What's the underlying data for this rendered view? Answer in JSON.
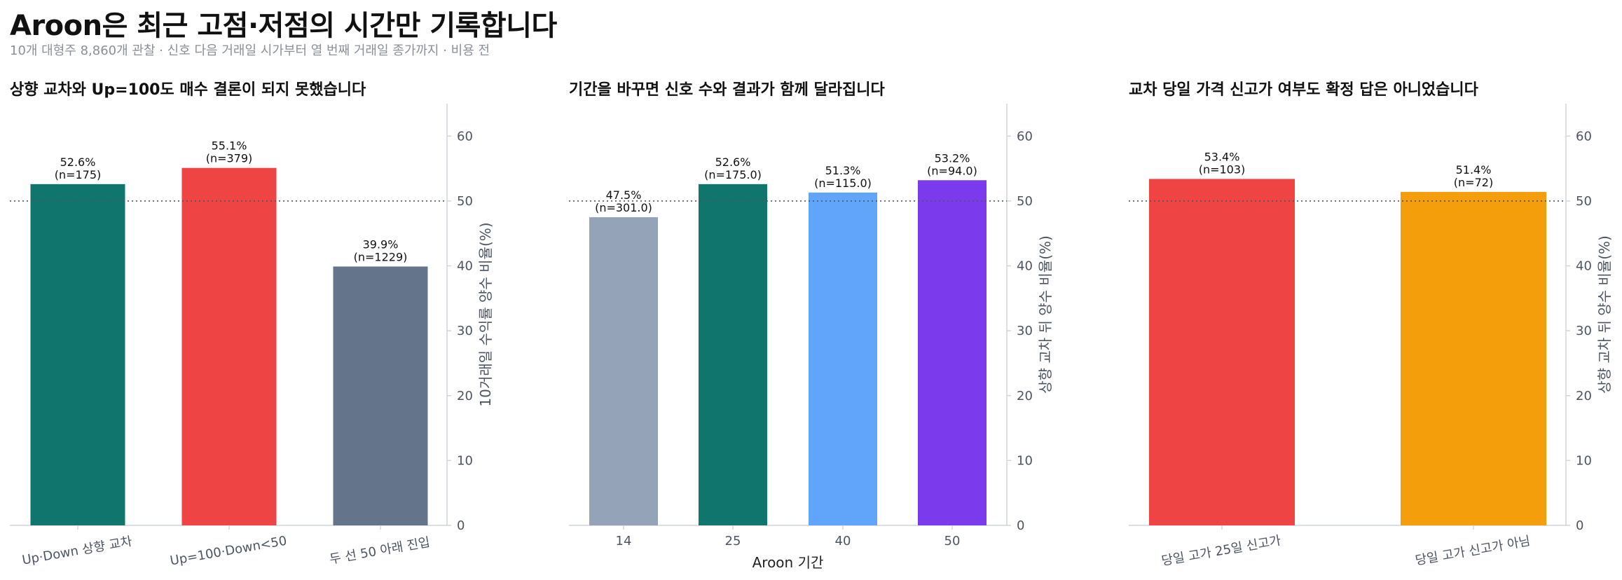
{
  "title": "Aroon은 최근 고점·저점의 시간만 기록합니다",
  "subtitle": "10개 대형주 8,860개 관찰 · 신호 다음 거래일 시가부터 열 번째 거래일 종가까지 · 비용 전",
  "colors": {
    "green": "#10766d",
    "red": "#ef4444",
    "slate": "#64748b",
    "light_slate": "#94a3b8",
    "blue": "#60a5fa",
    "purple": "#7c3aed",
    "orange": "#f59e0b",
    "axis": "#d1d5db",
    "reference_line": "#4b5563"
  },
  "chart_data": [
    {
      "type": "bar",
      "title": "상향 교차와 Up=100도 매수 결론이 되지 못했습니다",
      "categories": [
        "Up·Down 상향 교차",
        "Up=100·Down<50",
        "두 선 50 아래 진입"
      ],
      "values": [
        52.6,
        55.1,
        39.9
      ],
      "labels": [
        "52.6%\n(n=175)",
        "55.1%\n(n=379)",
        "39.9%\n(n=1229)"
      ],
      "colors": [
        "#10766d",
        "#ef4444",
        "#64748b"
      ],
      "xlabel": "",
      "ylabel": "10거래일 수익률 양수 비율(%)",
      "ylim": [
        0,
        65
      ],
      "yticks": [
        0,
        10,
        20,
        30,
        40,
        50,
        60
      ],
      "reference_line": 50,
      "rotated_categories": true
    },
    {
      "type": "bar",
      "title": "기간을 바꾸면 신호 수와 결과가 함께 달라집니다",
      "categories": [
        "14",
        "25",
        "40",
        "50"
      ],
      "values": [
        47.5,
        52.6,
        51.3,
        53.2
      ],
      "labels": [
        "47.5%\n(n=301.0)",
        "52.6%\n(n=175.0)",
        "51.3%\n(n=115.0)",
        "53.2%\n(n=94.0)"
      ],
      "colors": [
        "#94a3b8",
        "#10766d",
        "#60a5fa",
        "#7c3aed"
      ],
      "xlabel": "Aroon 기간",
      "ylabel": "상향 교차 뒤 양수 비율(%)",
      "ylim": [
        0,
        65
      ],
      "yticks": [
        0,
        10,
        20,
        30,
        40,
        50,
        60
      ],
      "reference_line": 50,
      "rotated_categories": false
    },
    {
      "type": "bar",
      "title": "교차 당일 가격 신고가 여부도 확정 답은 아니었습니다",
      "categories": [
        "당일 고가 25일 신고가",
        "당일 고가 신고가 아님"
      ],
      "values": [
        53.4,
        51.4
      ],
      "labels": [
        "53.4%\n(n=103)",
        "51.4%\n(n=72)"
      ],
      "colors": [
        "#ef4444",
        "#f59e0b"
      ],
      "xlabel": "",
      "ylabel": "상향 교차 뒤 양수 비율(%)",
      "ylim": [
        0,
        65
      ],
      "yticks": [
        0,
        10,
        20,
        30,
        40,
        50,
        60
      ],
      "reference_line": 50,
      "rotated_categories": true
    }
  ]
}
